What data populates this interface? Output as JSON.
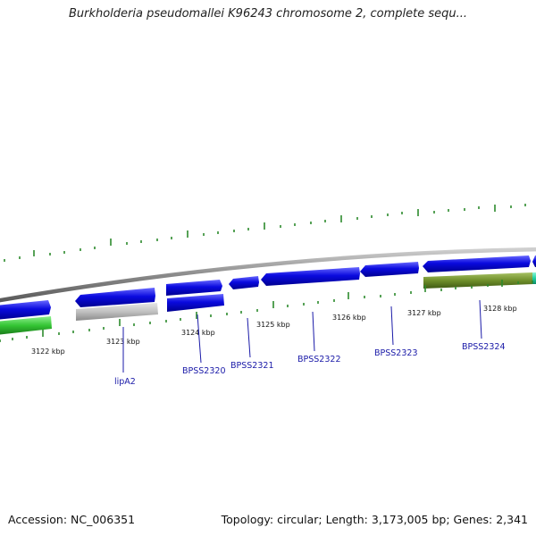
{
  "title": "Burkholderia pseudomallei K96243 chromosome 2, complete sequ...",
  "footer": {
    "accession": "Accession: NC_006351",
    "summary": "Topology: circular; Length: 3,173,005 bp; Genes: 2,341"
  },
  "scale_labels": [
    "3122 kbp",
    "3123 kbp",
    "3124 kbp",
    "3125 kbp",
    "3126 kbp",
    "3127 kbp",
    "3128 kbp"
  ],
  "gene_labels": [
    "lipA2",
    "BPSS2320",
    "BPSS2321",
    "BPSS2322",
    "BPSS2323",
    "BPSS2324"
  ],
  "colors": {
    "cds_forward": "#0a0adf",
    "cds_highlight": "#c0c0c0",
    "green_feature": "#3cc43c",
    "olive_feature": "#6f8f2a",
    "teal_feature": "#1fd0a0",
    "backbone": "#8a8a8a",
    "ticks": "#2d8a2d",
    "label_text": "#1a1aa8"
  }
}
